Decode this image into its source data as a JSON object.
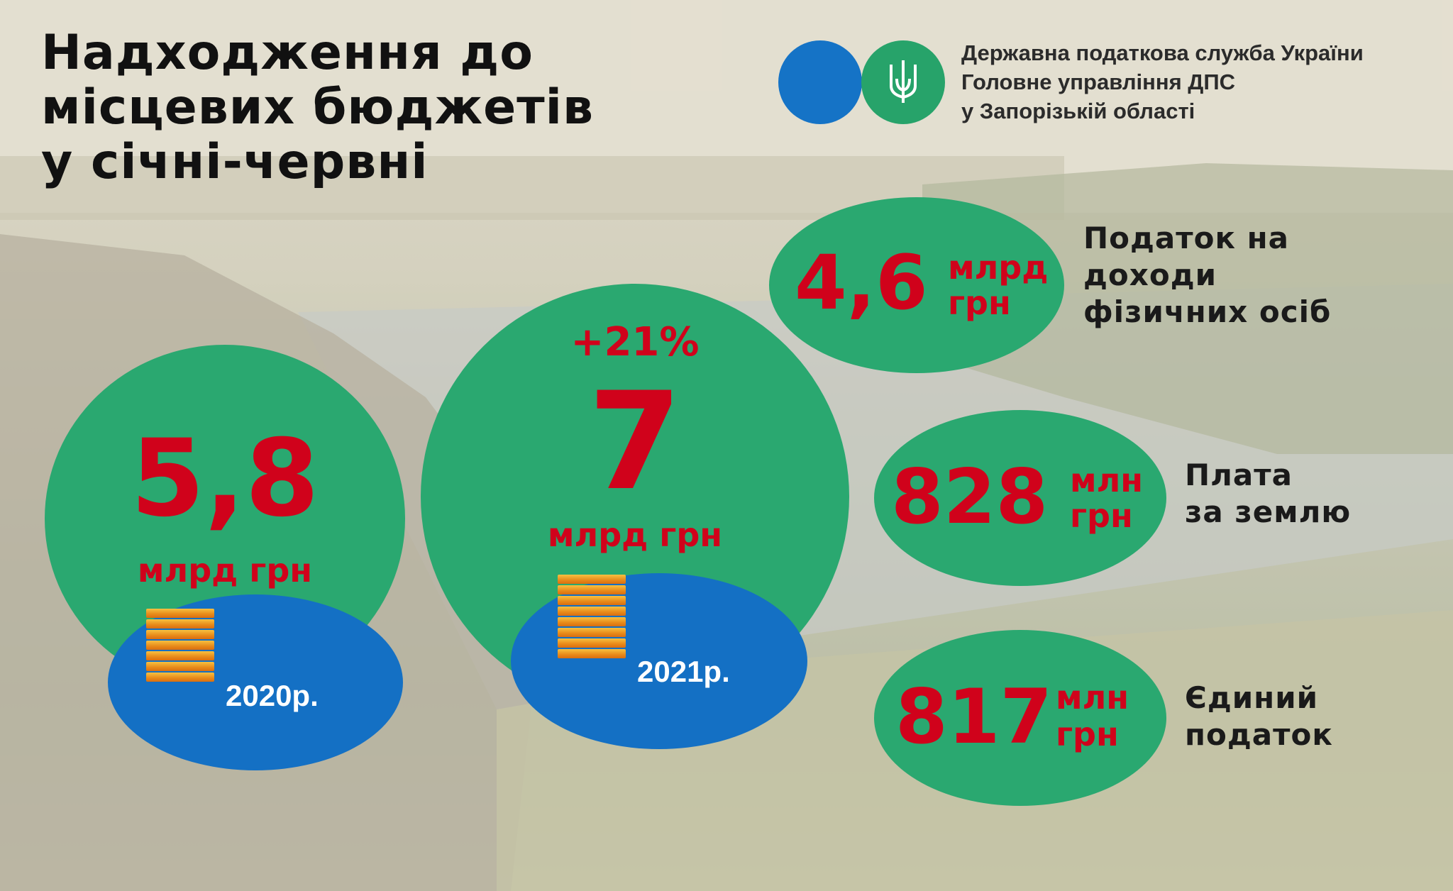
{
  "title": {
    "line1": "Надходження до",
    "line2": "місцевих бюджетів",
    "line3": "у січні-червні"
  },
  "org": {
    "line1": "Державна податкова служба України",
    "line2": "Головне управління ДПС",
    "line3": "у Запорізькій області"
  },
  "icons": {
    "emblem": "trident-icon",
    "coins": "coin-stack-icon"
  },
  "colors": {
    "green": "#2aa870",
    "blue": "#1470c4",
    "red": "#d0021b"
  },
  "year2020": {
    "value": "5,8",
    "unit": "млрд грн",
    "year": "2020р."
  },
  "year2021": {
    "growth": "+21%",
    "value": "7",
    "unit": "млрд грн",
    "year": "2021р."
  },
  "items": [
    {
      "value": "4,6",
      "unit_top": "млрд",
      "unit_bottom": "грн",
      "label_lines": [
        "Податок на",
        "доходи",
        "фізичних осіб"
      ]
    },
    {
      "value": "828",
      "unit_top": "млн",
      "unit_bottom": "грн",
      "label_lines": [
        "Плата",
        "за землю"
      ]
    },
    {
      "value": "817",
      "unit_top": "млн",
      "unit_bottom": "грн",
      "label_lines": [
        "Єдиний",
        "податок"
      ]
    }
  ]
}
